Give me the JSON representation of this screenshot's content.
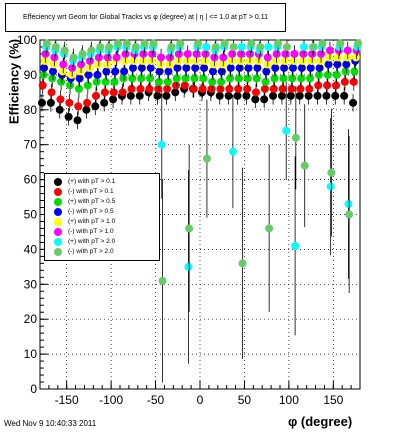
{
  "timestamp": "Wed Nov  9 10:40:33 2011",
  "chart_data": {
    "type": "scatter",
    "title": "Effeciency wrt Geom for Global Tracks vs φ (degree) at |  η | <= 1.0 at pT > 0.11",
    "xlabel": "φ (degree)",
    "ylabel": "Efficiency (%)",
    "xlim": [
      -180,
      180
    ],
    "ylim": [
      0,
      100
    ],
    "xticks": [
      -150,
      -100,
      -50,
      0,
      50,
      100,
      150
    ],
    "yticks": [
      0,
      10,
      20,
      30,
      40,
      50,
      60,
      70,
      80,
      90,
      100
    ],
    "grid": true,
    "legend_position": "center-left",
    "series": [
      {
        "name": "(+) with pT > 0.1",
        "color": "#000000",
        "points": [
          [
            -175,
            82
          ],
          [
            -165,
            82
          ],
          [
            -155,
            80
          ],
          [
            -145,
            78
          ],
          [
            -135,
            77
          ],
          [
            -125,
            80
          ],
          [
            -115,
            81
          ],
          [
            -105,
            82
          ],
          [
            -95,
            83
          ],
          [
            -85,
            84
          ],
          [
            -75,
            84
          ],
          [
            -65,
            84
          ],
          [
            -55,
            85
          ],
          [
            -45,
            84
          ],
          [
            -35,
            84
          ],
          [
            -25,
            85
          ],
          [
            -15,
            86
          ],
          [
            -5,
            86
          ],
          [
            5,
            85
          ],
          [
            15,
            85
          ],
          [
            25,
            84
          ],
          [
            35,
            84
          ],
          [
            45,
            84
          ],
          [
            55,
            84
          ],
          [
            65,
            83
          ],
          [
            75,
            83
          ],
          [
            85,
            84
          ],
          [
            95,
            84
          ],
          [
            105,
            84
          ],
          [
            115,
            84
          ],
          [
            125,
            84
          ],
          [
            135,
            84
          ],
          [
            145,
            84
          ],
          [
            155,
            84
          ],
          [
            165,
            84
          ],
          [
            175,
            82
          ]
        ]
      },
      {
        "name": "(-) with pT > 0.1",
        "color": "#ff0000",
        "points": [
          [
            -175,
            87
          ],
          [
            -165,
            85
          ],
          [
            -155,
            83
          ],
          [
            -145,
            82
          ],
          [
            -135,
            81
          ],
          [
            -125,
            82
          ],
          [
            -115,
            84
          ],
          [
            -105,
            85
          ],
          [
            -95,
            85
          ],
          [
            -85,
            85
          ],
          [
            -75,
            86
          ],
          [
            -65,
            86
          ],
          [
            -55,
            86
          ],
          [
            -45,
            86
          ],
          [
            -35,
            86
          ],
          [
            -25,
            87
          ],
          [
            -15,
            87
          ],
          [
            -5,
            86
          ],
          [
            5,
            86
          ],
          [
            15,
            86
          ],
          [
            25,
            86
          ],
          [
            35,
            86
          ],
          [
            45,
            86
          ],
          [
            55,
            86
          ],
          [
            65,
            85
          ],
          [
            75,
            86
          ],
          [
            85,
            86
          ],
          [
            95,
            86
          ],
          [
            105,
            86
          ],
          [
            115,
            86
          ],
          [
            125,
            86
          ],
          [
            135,
            87
          ],
          [
            145,
            87
          ],
          [
            155,
            87
          ],
          [
            165,
            88
          ],
          [
            175,
            88
          ]
        ]
      },
      {
        "name": "(+) with pT > 0.5",
        "color": "#00dd00",
        "points": [
          [
            -175,
            90
          ],
          [
            -165,
            89
          ],
          [
            -155,
            88
          ],
          [
            -145,
            87
          ],
          [
            -135,
            86
          ],
          [
            -125,
            87
          ],
          [
            -115,
            88
          ],
          [
            -105,
            88
          ],
          [
            -95,
            88
          ],
          [
            -85,
            89
          ],
          [
            -75,
            89
          ],
          [
            -65,
            89
          ],
          [
            -55,
            89
          ],
          [
            -45,
            88
          ],
          [
            -35,
            88
          ],
          [
            -25,
            89
          ],
          [
            -15,
            89
          ],
          [
            -5,
            89
          ],
          [
            5,
            89
          ],
          [
            15,
            88
          ],
          [
            25,
            88
          ],
          [
            35,
            89
          ],
          [
            45,
            89
          ],
          [
            55,
            89
          ],
          [
            65,
            89
          ],
          [
            75,
            88
          ],
          [
            85,
            89
          ],
          [
            95,
            89
          ],
          [
            105,
            89
          ],
          [
            115,
            89
          ],
          [
            125,
            89
          ],
          [
            135,
            90
          ],
          [
            145,
            90
          ],
          [
            155,
            90
          ],
          [
            165,
            91
          ],
          [
            175,
            91
          ]
        ]
      },
      {
        "name": "(-) with pT > 0.5",
        "color": "#0000ff",
        "points": [
          [
            -175,
            92
          ],
          [
            -165,
            91
          ],
          [
            -155,
            90
          ],
          [
            -145,
            89
          ],
          [
            -135,
            89
          ],
          [
            -125,
            90
          ],
          [
            -115,
            90
          ],
          [
            -105,
            91
          ],
          [
            -95,
            91
          ],
          [
            -85,
            91
          ],
          [
            -75,
            92
          ],
          [
            -65,
            92
          ],
          [
            -55,
            92
          ],
          [
            -45,
            91
          ],
          [
            -35,
            91
          ],
          [
            -25,
            92
          ],
          [
            -15,
            92
          ],
          [
            -5,
            92
          ],
          [
            5,
            92
          ],
          [
            15,
            91
          ],
          [
            25,
            91
          ],
          [
            35,
            92
          ],
          [
            45,
            92
          ],
          [
            55,
            92
          ],
          [
            65,
            92
          ],
          [
            75,
            91
          ],
          [
            85,
            92
          ],
          [
            95,
            92
          ],
          [
            105,
            92
          ],
          [
            115,
            92
          ],
          [
            125,
            92
          ],
          [
            135,
            92
          ],
          [
            145,
            93
          ],
          [
            155,
            93
          ],
          [
            165,
            93
          ],
          [
            175,
            94
          ]
        ]
      },
      {
        "name": "(+) with pT > 1.0",
        "color": "#ffff00",
        "points": [
          [
            -175,
            94
          ],
          [
            -165,
            93
          ],
          [
            -155,
            91
          ],
          [
            -145,
            90
          ],
          [
            -135,
            91
          ],
          [
            -125,
            92
          ],
          [
            -115,
            93
          ],
          [
            -105,
            93
          ],
          [
            -95,
            94
          ],
          [
            -85,
            94
          ],
          [
            -75,
            94
          ],
          [
            -65,
            94
          ],
          [
            -55,
            94
          ],
          [
            -45,
            93
          ],
          [
            -35,
            93
          ],
          [
            -25,
            94
          ],
          [
            -15,
            94
          ],
          [
            -5,
            94
          ],
          [
            5,
            94
          ],
          [
            15,
            93
          ],
          [
            25,
            93
          ],
          [
            35,
            94
          ],
          [
            45,
            94
          ],
          [
            55,
            94
          ],
          [
            65,
            94
          ],
          [
            75,
            93
          ],
          [
            85,
            94
          ],
          [
            95,
            94
          ],
          [
            105,
            94
          ],
          [
            115,
            94
          ],
          [
            125,
            94
          ],
          [
            135,
            94
          ],
          [
            145,
            95
          ],
          [
            155,
            95
          ],
          [
            165,
            95
          ],
          [
            175,
            95
          ]
        ]
      },
      {
        "name": "(-) with pT > 1.0",
        "color": "#ff00ff",
        "points": [
          [
            -175,
            96
          ],
          [
            -165,
            95
          ],
          [
            -155,
            93
          ],
          [
            -145,
            92
          ],
          [
            -135,
            93
          ],
          [
            -125,
            94
          ],
          [
            -115,
            95
          ],
          [
            -105,
            95
          ],
          [
            -95,
            95
          ],
          [
            -85,
            96
          ],
          [
            -75,
            96
          ],
          [
            -65,
            96
          ],
          [
            -55,
            96
          ],
          [
            -45,
            95
          ],
          [
            -35,
            95
          ],
          [
            -25,
            96
          ],
          [
            -15,
            96
          ],
          [
            -5,
            96
          ],
          [
            5,
            96
          ],
          [
            15,
            95
          ],
          [
            25,
            95
          ],
          [
            35,
            96
          ],
          [
            45,
            96
          ],
          [
            55,
            96
          ],
          [
            65,
            96
          ],
          [
            75,
            95
          ],
          [
            85,
            96
          ],
          [
            95,
            96
          ],
          [
            105,
            96
          ],
          [
            115,
            96
          ],
          [
            125,
            96
          ],
          [
            135,
            96
          ],
          [
            145,
            97
          ],
          [
            155,
            97
          ],
          [
            165,
            97
          ],
          [
            175,
            97
          ]
        ]
      },
      {
        "name": "(+) with pT > 2.0",
        "color": "#00ffff",
        "points": [
          [
            -175,
            98
          ],
          [
            -165,
            97
          ],
          [
            -155,
            96
          ],
          [
            -145,
            94
          ],
          [
            -135,
            95
          ],
          [
            -125,
            96
          ],
          [
            -115,
            97
          ],
          [
            -105,
            97
          ],
          [
            -95,
            98
          ],
          [
            -85,
            98
          ],
          [
            -75,
            97
          ],
          [
            -65,
            98
          ],
          [
            -55,
            98
          ],
          [
            -45,
            70
          ],
          [
            -35,
            97
          ],
          [
            -25,
            98
          ],
          [
            -15,
            35
          ],
          [
            -5,
            98
          ],
          [
            5,
            98
          ],
          [
            15,
            97
          ],
          [
            25,
            98
          ],
          [
            35,
            68
          ],
          [
            45,
            98
          ],
          [
            55,
            98
          ],
          [
            65,
            97
          ],
          [
            75,
            98
          ],
          [
            85,
            98
          ],
          [
            95,
            74
          ],
          [
            105,
            41
          ],
          [
            115,
            98
          ],
          [
            125,
            98
          ],
          [
            135,
            98
          ],
          [
            145,
            58
          ],
          [
            155,
            98
          ],
          [
            165,
            53
          ],
          [
            175,
            98
          ]
        ]
      },
      {
        "name": "(-) with pT > 2.0",
        "color": "#66cc66",
        "points": [
          [
            -175,
            99
          ],
          [
            -165,
            98
          ],
          [
            -155,
            97
          ],
          [
            -145,
            95
          ],
          [
            -135,
            96
          ],
          [
            -125,
            97
          ],
          [
            -115,
            98
          ],
          [
            -105,
            98
          ],
          [
            -95,
            99
          ],
          [
            -85,
            99
          ],
          [
            -75,
            98
          ],
          [
            -65,
            99
          ],
          [
            -55,
            99
          ],
          [
            -45,
            31
          ],
          [
            -35,
            98
          ],
          [
            -25,
            99
          ],
          [
            -15,
            46
          ],
          [
            -5,
            99
          ],
          [
            5,
            66
          ],
          [
            15,
            98
          ],
          [
            25,
            99
          ],
          [
            35,
            98
          ],
          [
            45,
            36
          ],
          [
            55,
            99
          ],
          [
            65,
            98
          ],
          [
            75,
            46
          ],
          [
            85,
            99
          ],
          [
            95,
            98
          ],
          [
            105,
            72
          ],
          [
            115,
            64
          ],
          [
            125,
            98
          ],
          [
            135,
            99
          ],
          [
            145,
            62
          ],
          [
            155,
            99
          ],
          [
            165,
            50
          ],
          [
            175,
            99
          ]
        ]
      }
    ]
  }
}
